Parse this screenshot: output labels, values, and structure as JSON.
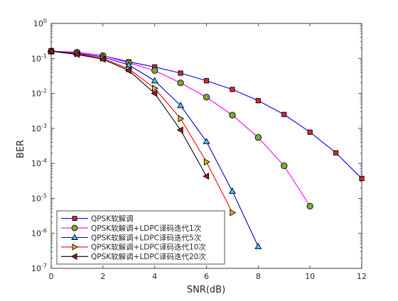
{
  "chart_data": {
    "type": "line",
    "title": "",
    "xlabel": "SNR(dB)",
    "ylabel": "BER",
    "xlim": [
      0,
      12
    ],
    "ylim": [
      1e-07,
      1
    ],
    "yscale": "log",
    "grid": true,
    "legend_position": "bottom-left",
    "x_ticks": [
      0,
      2,
      4,
      6,
      8,
      10,
      12
    ],
    "y_ticks": [
      {
        "value": 1,
        "exp": "0"
      },
      {
        "value": 0.1,
        "exp": "-1"
      },
      {
        "value": 0.01,
        "exp": "-2"
      },
      {
        "value": 0.001,
        "exp": "-3"
      },
      {
        "value": 0.0001,
        "exp": "-4"
      },
      {
        "value": 1e-05,
        "exp": "-5"
      },
      {
        "value": 1e-06,
        "exp": "-6"
      },
      {
        "value": 1e-07,
        "exp": "-7"
      }
    ],
    "y_tick_base": "10",
    "series": [
      {
        "name": "QPSK软解调",
        "color": "#0000ff",
        "marker": "square",
        "marker_color": "#d62728",
        "x": [
          0,
          1,
          2,
          3,
          4,
          5,
          6,
          7,
          8,
          9,
          10,
          11,
          12
        ],
        "y": [
          0.16,
          0.15,
          0.12,
          0.08,
          0.057,
          0.038,
          0.023,
          0.013,
          0.0062,
          0.0025,
          0.00078,
          0.0002,
          3.7e-05
        ]
      },
      {
        "name": "QPSK软解调+LDPC译码迭代1次",
        "color": "#ff00ff",
        "marker": "circle",
        "marker_color": "#77ac30",
        "x": [
          0,
          1,
          2,
          3,
          4,
          5,
          6,
          7,
          8,
          9,
          10
        ],
        "y": [
          0.16,
          0.15,
          0.12,
          0.075,
          0.045,
          0.02,
          0.0078,
          0.0024,
          0.00055,
          8.5e-05,
          6e-06
        ]
      },
      {
        "name": "QPSK软解调+LDPC译码迭代5次",
        "color": "#0000cc",
        "marker": "triangle-up",
        "marker_color": "#4dbeee",
        "x": [
          0,
          1,
          2,
          3,
          4,
          5,
          6,
          7,
          8
        ],
        "y": [
          0.16,
          0.14,
          0.11,
          0.065,
          0.023,
          0.0045,
          0.00042,
          1.6e-05,
          4.2e-07
        ]
      },
      {
        "name": "QPSK软解调+LDPC译码迭代10次",
        "color": "#ff0000",
        "marker": "triangle-right",
        "marker_color": "#edb120",
        "x": [
          0,
          1,
          2,
          3,
          4,
          5,
          6,
          7
        ],
        "y": [
          0.16,
          0.135,
          0.1,
          0.05,
          0.014,
          0.0019,
          0.00011,
          3.9e-06
        ]
      },
      {
        "name": "QPSK软解调+LDPC译码迭代20次",
        "color": "#000000",
        "marker": "triangle-left",
        "marker_color": "#a2142f",
        "x": [
          0,
          1,
          2,
          3,
          4,
          5,
          6
        ],
        "y": [
          0.16,
          0.13,
          0.095,
          0.045,
          0.01,
          0.0009,
          4.3e-05
        ]
      }
    ]
  }
}
